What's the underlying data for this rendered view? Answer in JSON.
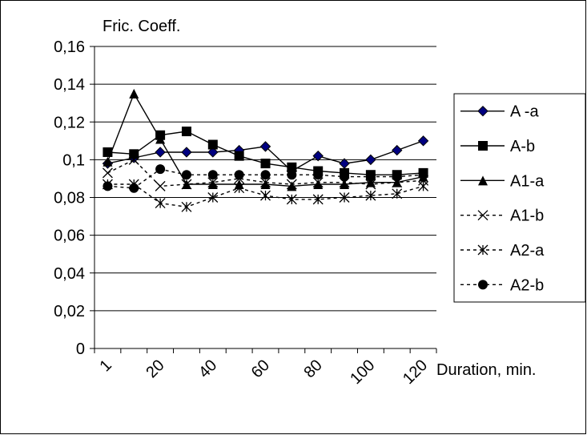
{
  "chart_data": {
    "type": "line",
    "y_title": "Fric. Coeff.",
    "x_title": "Duration, min.",
    "ylim": [
      0,
      0.16
    ],
    "y_ticks": [
      0,
      0.02,
      0.04,
      0.06,
      0.08,
      0.1,
      0.12,
      0.14,
      0.16
    ],
    "y_tick_labels": [
      "0",
      "0,02",
      "0,04",
      "0,06",
      "0,08",
      "0,1",
      "0,12",
      "0,14",
      "0,16"
    ],
    "x_tick_labels": [
      "1",
      "20",
      "40",
      "60",
      "80",
      "100",
      "120"
    ],
    "x": [
      5,
      15,
      25,
      35,
      45,
      55,
      65,
      75,
      85,
      95,
      105,
      115,
      125
    ],
    "grid": "horizontal",
    "legend_position": "right",
    "series": [
      {
        "name": "A -a",
        "line": "solid",
        "marker": "diamond",
        "color": "#000080",
        "values": [
          0.098,
          0.101,
          0.104,
          0.104,
          0.104,
          0.105,
          0.107,
          0.094,
          0.102,
          0.098,
          0.1,
          0.105,
          0.11
        ]
      },
      {
        "name": "A-b",
        "line": "solid",
        "marker": "square",
        "color": "#000000",
        "values": [
          0.104,
          0.103,
          0.113,
          0.115,
          0.108,
          0.102,
          0.098,
          0.096,
          0.094,
          0.093,
          0.092,
          0.092,
          0.093
        ]
      },
      {
        "name": "A1-a",
        "line": "solid",
        "marker": "triangle",
        "color": "#000000",
        "values": [
          0.099,
          0.135,
          0.111,
          0.087,
          0.087,
          0.087,
          0.087,
          0.086,
          0.087,
          0.087,
          0.088,
          0.088,
          0.091
        ]
      },
      {
        "name": "A1-b",
        "line": "dashed",
        "marker": "x",
        "color": "#000000",
        "values": [
          0.093,
          0.1,
          0.086,
          0.087,
          0.088,
          0.09,
          0.088,
          0.087,
          0.088,
          0.088,
          0.087,
          0.088,
          0.089
        ]
      },
      {
        "name": "A2-a",
        "line": "dashed",
        "marker": "star",
        "color": "#000000",
        "values": [
          0.087,
          0.087,
          0.077,
          0.075,
          0.08,
          0.085,
          0.081,
          0.079,
          0.079,
          0.08,
          0.081,
          0.082,
          0.086
        ]
      },
      {
        "name": "A2-b",
        "line": "dashed",
        "marker": "circle",
        "color": "#000000",
        "values": [
          0.086,
          0.085,
          0.095,
          0.092,
          0.092,
          0.092,
          0.092,
          0.092,
          0.092,
          0.091,
          0.091,
          0.091,
          0.092
        ]
      }
    ]
  }
}
